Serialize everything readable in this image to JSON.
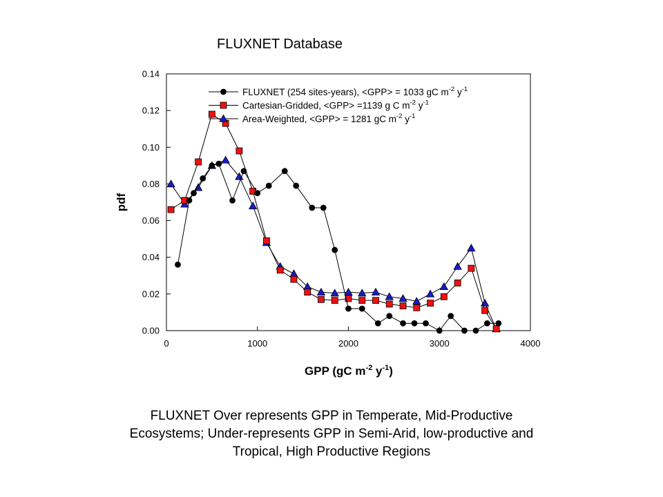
{
  "chart_data": {
    "type": "line",
    "title": "FLUXNET Database",
    "xlabel": {
      "pre": "GPP (gC m",
      "sup1": "-2",
      "mid": " y",
      "sup2": "-1",
      "post": ")"
    },
    "ylabel": "pdf",
    "xlim": [
      0,
      4000
    ],
    "ylim": [
      0,
      0.14
    ],
    "x_ticks": [
      "0",
      "1000",
      "2000",
      "3000",
      "4000"
    ],
    "y_ticks": [
      "0.00",
      "0.02",
      "0.04",
      "0.06",
      "0.08",
      "0.10",
      "0.12",
      "0.14"
    ],
    "grid": false,
    "legend_position": "top",
    "series": [
      {
        "name_parts": {
          "pre": "FLUXNET (254 sites-years), <GPP> = 1033  gC m",
          "sup1": "-2",
          "mid": " y",
          "sup2": "-1"
        },
        "marker": "circle",
        "color": "#000000",
        "x": [
          125,
          250,
          300,
          400,
          500,
          575,
          725,
          850,
          1000,
          1125,
          1300,
          1425,
          1600,
          1725,
          1850,
          2000,
          2150,
          2325,
          2450,
          2600,
          2725,
          2850,
          3000,
          3125,
          3275,
          3400,
          3525,
          3650
        ],
        "y": [
          0.036,
          0.071,
          0.075,
          0.083,
          0.09,
          0.091,
          0.071,
          0.087,
          0.075,
          0.079,
          0.087,
          0.079,
          0.067,
          0.067,
          0.044,
          0.012,
          0.012,
          0.004,
          0.008,
          0.004,
          0.004,
          0.004,
          0.0,
          0.008,
          0.0,
          0.0,
          0.004,
          0.004
        ]
      },
      {
        "name_parts": {
          "pre": "Cartesian-Gridded, <GPP> =1139 g C m",
          "sup1": "-2",
          "mid": " y",
          "sup2": "-1"
        },
        "marker": "square",
        "color": "#ee1111",
        "x": [
          50,
          200,
          350,
          500,
          650,
          800,
          950,
          1100,
          1250,
          1400,
          1550,
          1700,
          1850,
          2000,
          2150,
          2300,
          2450,
          2600,
          2750,
          2900,
          3050,
          3200,
          3350,
          3500,
          3625
        ],
        "y": [
          0.066,
          0.071,
          0.092,
          0.118,
          0.113,
          0.098,
          0.076,
          0.049,
          0.033,
          0.028,
          0.021,
          0.017,
          0.0165,
          0.0175,
          0.0165,
          0.0165,
          0.0145,
          0.0135,
          0.0125,
          0.015,
          0.0185,
          0.026,
          0.034,
          0.011,
          0.001
        ]
      },
      {
        "name_parts": {
          "pre": "Area-Weighted, <GPP> = 1281 gC m",
          "sup1": "-2",
          "mid": " y",
          "sup2": "-1"
        },
        "marker": "triangle",
        "color": "#1a1acc",
        "x": [
          50,
          200,
          350,
          500,
          650,
          800,
          950,
          1100,
          1250,
          1400,
          1550,
          1700,
          1850,
          2000,
          2150,
          2300,
          2450,
          2600,
          2750,
          2900,
          3050,
          3200,
          3350,
          3500,
          3625
        ],
        "y": [
          0.08,
          0.069,
          0.078,
          0.09,
          0.093,
          0.084,
          0.068,
          0.048,
          0.035,
          0.031,
          0.024,
          0.021,
          0.0205,
          0.021,
          0.0205,
          0.021,
          0.0185,
          0.0175,
          0.016,
          0.02,
          0.024,
          0.035,
          0.045,
          0.015,
          0.001
        ]
      }
    ]
  },
  "caption_lines": [
    "FLUXNET Over represents GPP in Temperate, Mid-Productive",
    "Ecosystems; Under-represents GPP in Semi-Arid, low-productive and",
    "Tropical, High Productive Regions"
  ]
}
